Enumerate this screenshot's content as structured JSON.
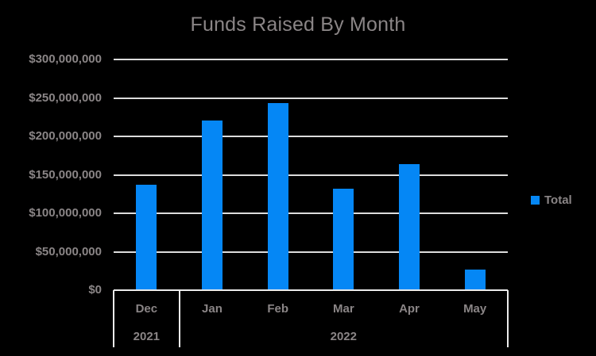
{
  "colors": {
    "background": "#000000",
    "bar": "#0587f5",
    "text": "#8a8586",
    "gridline": "#dcdcdc",
    "axis": "#ececec"
  },
  "legend": {
    "label": "Total",
    "swatch_icon": "blue-square-icon"
  },
  "chart_data": {
    "type": "bar",
    "title": "Funds Raised By Month",
    "categories": [
      "Dec",
      "Jan",
      "Feb",
      "Mar",
      "Apr",
      "May"
    ],
    "year_groups": [
      {
        "label": "2021",
        "span": 1
      },
      {
        "label": "2022",
        "span": 5
      }
    ],
    "series": [
      {
        "name": "Total",
        "values": [
          137000000,
          221000000,
          243000000,
          132000000,
          164000000,
          27000000
        ]
      }
    ],
    "y_ticks": [
      "$0",
      "$50,000,000",
      "$100,000,000",
      "$150,000,000",
      "$200,000,000",
      "$250,000,000",
      "$300,000,000"
    ],
    "ylim": [
      0,
      300000000
    ],
    "tick_step": 50000000,
    "grid": true,
    "legend_position": "right"
  }
}
